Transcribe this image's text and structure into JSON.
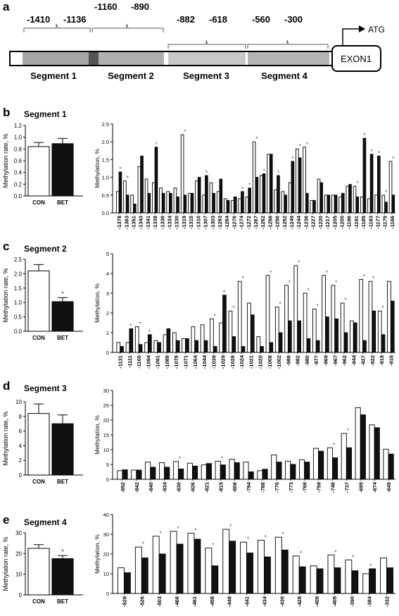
{
  "diagram": {
    "panel_letter": "a",
    "atg_label": "ATG",
    "exon_label": "EXON1",
    "segments": [
      {
        "name": "Segment 1",
        "coords": [
          "-1410",
          "-1136"
        ]
      },
      {
        "name": "Segment 2",
        "coords": [
          "-1160",
          "-890"
        ]
      },
      {
        "name": "Segment 3",
        "coords": [
          "-882",
          "-618"
        ]
      },
      {
        "name": "Segment 4",
        "coords": [
          "-560",
          "-300"
        ]
      }
    ]
  },
  "panels": [
    {
      "letter": "b",
      "title": "Segment 1"
    },
    {
      "letter": "c",
      "title": "Segment 2"
    },
    {
      "letter": "d",
      "title": "Segment 3"
    },
    {
      "letter": "e",
      "title": "Segment 4"
    }
  ],
  "legend": {
    "con": "CON",
    "bet": "BET"
  },
  "colors": {
    "con": "#ffffff",
    "bet": "#111111",
    "stroke": "#000000",
    "segment_fill": "#a8a8a8",
    "segment_dark": "#555555"
  },
  "chart_data": [
    {
      "type": "bar",
      "panel": "b",
      "chart": "summary",
      "ylabel": "Methylation rate, %",
      "ylim": [
        0,
        1.2
      ],
      "yticks": [
        "0.0",
        "0.2",
        "0.4",
        "0.6",
        "0.8",
        "1.0",
        "1.2"
      ],
      "categories": [
        "CON",
        "BET"
      ],
      "values": [
        0.84,
        0.89
      ],
      "errors": [
        0.07,
        0.09
      ],
      "significant": [
        false,
        false
      ]
    },
    {
      "type": "bar",
      "panel": "b",
      "chart": "cpg",
      "ylabel": "Methylation, %",
      "ylim": [
        0,
        2.5
      ],
      "yticks": [
        "0.0",
        "0.5",
        "1.0",
        "1.5",
        "2.0",
        "2.5"
      ],
      "categories": [
        "-1378",
        "-1363",
        "-1351",
        "-1343",
        "-1341",
        "-1338",
        "-1336",
        "-1334",
        "-1330",
        "-1319",
        "-1315",
        "-1310",
        "-1307",
        "-1303",
        "-1293",
        "-1284",
        "-1276",
        "-1274",
        "-1272",
        "-1267",
        "-1262",
        "-1258",
        "-1256",
        "-1252",
        "-1249",
        "-1244",
        "-1236",
        "-1227",
        "-1220",
        "-1217",
        "-1205",
        "-1200",
        "-1196",
        "-1191",
        "-1185",
        "-1183",
        "-1177",
        "-1175",
        "-1166"
      ],
      "series": [
        {
          "name": "CON",
          "values": [
            0.6,
            0.9,
            0.5,
            1.3,
            0.95,
            0.85,
            0.7,
            0.6,
            0.7,
            2.2,
            0.55,
            0.9,
            0.5,
            0.85,
            0.6,
            0.4,
            0.35,
            0.4,
            0.45,
            2.0,
            1.05,
            1.65,
            0.65,
            0.6,
            0.85,
            1.8,
            1.85,
            0.35,
            0.95,
            0.5,
            0.5,
            0.45,
            0.75,
            0.75,
            0.45,
            0.4,
            0.5,
            0.5,
            1.45
          ]
        },
        {
          "name": "BET",
          "values": [
            1.15,
            0.5,
            0.25,
            1.6,
            0.55,
            1.85,
            0.55,
            0.55,
            0.45,
            0.5,
            0.55,
            1.0,
            1.05,
            0.55,
            0.95,
            0.35,
            0.45,
            0.6,
            0.7,
            1.0,
            1.1,
            1.65,
            1.05,
            0.5,
            1.45,
            1.55,
            0.55,
            0.35,
            0.85,
            0.5,
            0.5,
            0.55,
            0.8,
            0.45,
            2.1,
            1.65,
            1.6,
            0.3,
            0.5
          ]
        }
      ],
      "significant": [
        true,
        true,
        false,
        false,
        false,
        true,
        false,
        false,
        false,
        true,
        false,
        false,
        true,
        false,
        false,
        false,
        false,
        true,
        true,
        true,
        true,
        false,
        true,
        false,
        true,
        true,
        true,
        false,
        false,
        false,
        false,
        false,
        false,
        true,
        true,
        true,
        true,
        true,
        true
      ]
    },
    {
      "type": "bar",
      "panel": "c",
      "chart": "summary",
      "ylabel": "Methylation rate, %",
      "ylim": [
        0,
        2.5
      ],
      "yticks": [
        "0.0",
        "0.5",
        "1.0",
        "1.5",
        "2.0",
        "2.5"
      ],
      "categories": [
        "CON",
        "BET"
      ],
      "values": [
        2.1,
        1.03
      ],
      "errors": [
        0.22,
        0.14
      ],
      "significant": [
        false,
        true
      ]
    },
    {
      "type": "bar",
      "panel": "c",
      "chart": "cpg",
      "ylabel": "Methylation, %",
      "ylim": [
        0,
        5
      ],
      "yticks": [
        "0",
        "1",
        "2",
        "3",
        "4",
        "5"
      ],
      "categories": [
        "-1131",
        "-1111",
        "-1100",
        "-1094",
        "-1091",
        "-1089",
        "-1078",
        "-1071",
        "-1064",
        "-1044",
        "-1039",
        "-1029",
        "-1026",
        "-1024",
        "-1021",
        "-1020",
        "-1008",
        "-1002",
        "-986",
        "-982",
        "-980",
        "-977",
        "-969",
        "-967",
        "-962",
        "-944",
        "-927",
        "-922",
        "-919",
        "-916"
      ],
      "series": [
        {
          "name": "CON",
          "values": [
            0.5,
            0.5,
            1.3,
            0.5,
            0.6,
            0.9,
            1.0,
            0.7,
            1.3,
            1.4,
            1.7,
            1.5,
            2.1,
            3.6,
            2.5,
            0.8,
            3.9,
            2.3,
            3.4,
            4.4,
            3.0,
            2.2,
            3.9,
            3.4,
            2.5,
            1.6,
            3.7,
            3.6,
            2.1,
            3.6
          ]
        },
        {
          "name": "BET",
          "values": [
            0.3,
            1.2,
            0.4,
            0.9,
            0.5,
            1.2,
            0.6,
            0.7,
            0.6,
            0.6,
            0.3,
            2.9,
            0.8,
            0.3,
            1.9,
            0.3,
            0.5,
            1.0,
            1.6,
            1.6,
            0.7,
            0.6,
            1.8,
            1.7,
            1.0,
            1.5,
            0.6,
            2.1,
            0.9,
            2.6
          ]
        }
      ],
      "significant": [
        false,
        true,
        true,
        true,
        false,
        false,
        false,
        false,
        false,
        false,
        true,
        true,
        true,
        true,
        false,
        false,
        true,
        true,
        true,
        true,
        true,
        true,
        true,
        true,
        true,
        false,
        true,
        true,
        true,
        false
      ]
    },
    {
      "type": "bar",
      "panel": "d",
      "chart": "summary",
      "ylabel": "Methylation rate, %",
      "ylim": [
        0,
        10
      ],
      "yticks": [
        "0",
        "2",
        "4",
        "6",
        "8",
        "10"
      ],
      "categories": [
        "CON",
        "BET"
      ],
      "values": [
        8.4,
        7.0
      ],
      "errors": [
        1.3,
        1.2
      ],
      "significant": [
        false,
        false
      ]
    },
    {
      "type": "bar",
      "panel": "d",
      "chart": "cpg",
      "ylabel": "Methylation, %",
      "ylim": [
        0,
        31
      ],
      "yticks": [
        "0",
        "5",
        "10",
        "15",
        "20",
        "25",
        "30"
      ],
      "categories": [
        "-852",
        "-842",
        "-840",
        "-834",
        "-830",
        "-826",
        "-821",
        "-815",
        "-806",
        "-794",
        "-788",
        "-776",
        "-773",
        "-766",
        "-759",
        "-748",
        "-737",
        "-695",
        "-674",
        "-645"
      ],
      "series": [
        {
          "name": "CON",
          "values": [
            3.0,
            3.2,
            6.0,
            5.8,
            6.2,
            5.6,
            5.0,
            6.3,
            7.0,
            6.0,
            3.0,
            8.5,
            6.3,
            6.8,
            10.8,
            11.0,
            16.0,
            25.0,
            19.0,
            10.5
          ]
        },
        {
          "name": "BET",
          "values": [
            3.3,
            3.2,
            4.2,
            4.2,
            3.6,
            4.6,
            5.5,
            5.0,
            5.8,
            2.6,
            3.5,
            6.0,
            5.2,
            6.0,
            9.8,
            7.5,
            11.0,
            22.5,
            18.0,
            8.8
          ]
        }
      ],
      "significant": [
        false,
        false,
        false,
        false,
        true,
        false,
        false,
        true,
        false,
        false,
        false,
        false,
        false,
        false,
        false,
        true,
        true,
        false,
        false,
        false
      ]
    },
    {
      "type": "bar",
      "panel": "e",
      "chart": "summary",
      "ylabel": "Methylation rate, %",
      "ylim": [
        0,
        30
      ],
      "yticks": [
        "0",
        "10",
        "20",
        "30"
      ],
      "categories": [
        "CON",
        "BET"
      ],
      "values": [
        22.5,
        17.5
      ],
      "errors": [
        1.8,
        1.5
      ],
      "significant": [
        false,
        true
      ]
    },
    {
      "type": "bar",
      "panel": "e",
      "chart": "cpg",
      "ylabel": "Methylation, %",
      "ylim": [
        0,
        40
      ],
      "yticks": [
        "0",
        "10",
        "20",
        "30",
        "40"
      ],
      "categories": [
        "-529",
        "-526",
        "-503",
        "-466",
        "-461",
        "-458",
        "-448",
        "-441",
        "-434",
        "-430",
        "-428",
        "-409",
        "-405",
        "-390",
        "-384",
        "-332"
      ],
      "series": [
        {
          "name": "CON",
          "values": [
            13.0,
            23.5,
            29.0,
            31.5,
            30.5,
            23.0,
            32.5,
            26.0,
            27.0,
            28.5,
            19.0,
            14.0,
            19.5,
            17.0,
            10.0,
            18.0
          ]
        },
        {
          "name": "BET",
          "values": [
            10.5,
            18.0,
            20.0,
            25.0,
            27.5,
            14.0,
            26.5,
            20.5,
            18.5,
            22.0,
            13.5,
            12.5,
            13.0,
            11.5,
            12.5,
            13.0
          ]
        }
      ],
      "significant": [
        false,
        true,
        true,
        true,
        true,
        true,
        true,
        true,
        true,
        true,
        true,
        false,
        true,
        true,
        true,
        false
      ]
    }
  ]
}
